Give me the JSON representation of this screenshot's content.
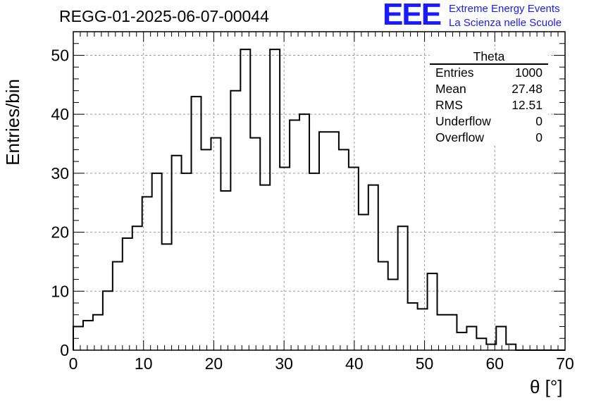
{
  "title": "REGG-01-2025-06-07-00044",
  "logo": {
    "letters": "EEE",
    "line1": "Extreme Energy Events",
    "line2": "La Scienza nelle Scuole"
  },
  "stats": {
    "title": "Theta",
    "rows": [
      {
        "label": "Entries",
        "value": "1000"
      },
      {
        "label": "Mean",
        "value": "27.48"
      },
      {
        "label": "RMS",
        "value": "12.51"
      },
      {
        "label": "Underflow",
        "value": "0"
      },
      {
        "label": "Overflow",
        "value": "0"
      }
    ]
  },
  "chart_data": {
    "type": "histogram",
    "title": "REGG-01-2025-06-07-00044",
    "xlabel": "θ [°]",
    "ylabel": "Entries/bin",
    "bin_width": 1.4,
    "x_start": 0,
    "values": [
      4,
      5,
      6,
      10,
      15,
      19,
      21,
      26,
      30,
      18,
      33,
      30,
      43,
      34,
      36,
      27,
      44,
      51,
      36,
      28,
      51,
      31,
      39,
      40,
      30,
      37,
      37,
      34,
      31,
      23,
      28,
      15,
      12,
      21,
      8,
      7,
      13,
      6,
      6,
      3,
      4,
      2,
      1,
      4,
      1,
      0,
      0,
      0,
      0,
      0
    ],
    "xlim": [
      0,
      70
    ],
    "ylim": [
      0,
      54
    ],
    "xticks": [
      0,
      10,
      20,
      30,
      40,
      50,
      60,
      70
    ],
    "yticks": [
      0,
      10,
      20,
      30,
      40,
      50
    ],
    "grid": true,
    "line_color": "#000000"
  }
}
